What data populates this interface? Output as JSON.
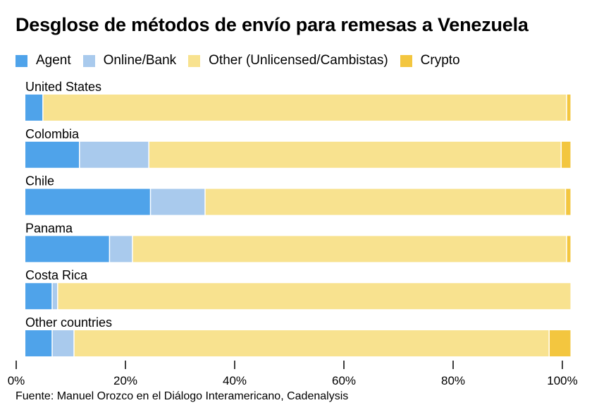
{
  "title": "Desglose de métodos de envío para remesas a Venezuela",
  "source": "Fuente: Manuel Orozco en el Diálogo Interamericano, Cadenalysis",
  "colors": {
    "agent": "#4fa3ea",
    "online_bank": "#a9caed",
    "other": "#f8e28f",
    "crypto": "#f3c63f",
    "axis": "#000000"
  },
  "chart_data": {
    "type": "bar",
    "orientation": "horizontal",
    "stacked": true,
    "title": "Desglose de métodos de envío para remesas a Venezuela",
    "xlabel": "",
    "ylabel": "",
    "xlim": [
      0,
      100
    ],
    "grid": false,
    "legend_position": "top-left",
    "categories": [
      "United States",
      "Colombia",
      "Chile",
      "Panama",
      "Costa Rica",
      "Other countries"
    ],
    "series": [
      {
        "key": "agent",
        "name": "Agent",
        "values": [
          3.3,
          10,
          23,
          15.5,
          5,
          5
        ]
      },
      {
        "key": "online_bank",
        "name": "Online/Bank",
        "values": [
          0,
          12.7,
          10,
          4.2,
          1,
          4
        ]
      },
      {
        "key": "other",
        "name": "Other (Unlicensed/Cambistas)",
        "values": [
          95.9,
          75.5,
          66,
          79.5,
          94,
          87
        ]
      },
      {
        "key": "crypto",
        "name": "Crypto",
        "values": [
          0.8,
          1.8,
          1,
          0.8,
          0,
          4
        ]
      }
    ],
    "ticks": [
      0,
      20,
      40,
      60,
      80,
      100
    ],
    "tick_labels": [
      "0%",
      "20%",
      "40%",
      "60%",
      "80%",
      "100%"
    ]
  }
}
